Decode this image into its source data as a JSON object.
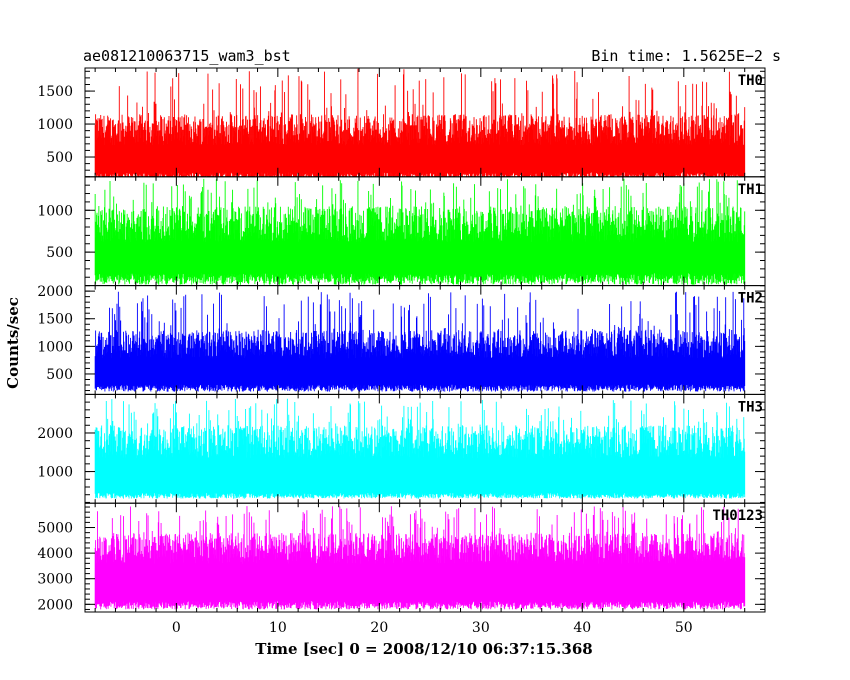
{
  "header": {
    "title": "ae081210063715_wam3_bst",
    "bin_time": "Bin time: 1.5625E−2 s"
  },
  "chart_data": {
    "type": "line",
    "ylabel": "Counts/sec",
    "xlabel": "Time [sec] 0 = 2008/12/10 06:37:15.368",
    "xlim": [
      -9,
      58
    ],
    "x_ticks": [
      0,
      10,
      20,
      30,
      40,
      50
    ],
    "x_range_data": [
      -8,
      56
    ],
    "grid": false,
    "panels": [
      {
        "name": "TH0",
        "color": "#ff0000",
        "ylim": [
          200,
          1850
        ],
        "ticks": [
          500,
          1000,
          1500
        ],
        "base_range": [
          100,
          1150
        ],
        "peak_max": 1850,
        "min_low": 150
      },
      {
        "name": "TH1",
        "color": "#00ff00",
        "ylim": [
          100,
          1400
        ],
        "ticks": [
          500,
          1000
        ],
        "base_range": [
          90,
          1050
        ],
        "peak_max": 1380,
        "min_low": 110
      },
      {
        "name": "TH2",
        "color": "#0000ff",
        "ylim": [
          130,
          2100
        ],
        "ticks": [
          500,
          1000,
          1500,
          2000
        ],
        "base_range": [
          150,
          1300
        ],
        "peak_max": 2000,
        "min_low": 180
      },
      {
        "name": "TH3",
        "color": "#00ffff",
        "ylim": [
          180,
          3000
        ],
        "ticks": [
          1000,
          2000
        ],
        "base_range": [
          300,
          2200
        ],
        "peak_max": 2900,
        "min_low": 300
      },
      {
        "name": "TH0123",
        "color": "#ff00ff",
        "ylim": [
          1700,
          5950
        ],
        "ticks": [
          2000,
          3000,
          4000,
          5000
        ],
        "base_range": [
          2100,
          4800
        ],
        "peak_max": 5850,
        "min_low": 1800
      }
    ]
  }
}
